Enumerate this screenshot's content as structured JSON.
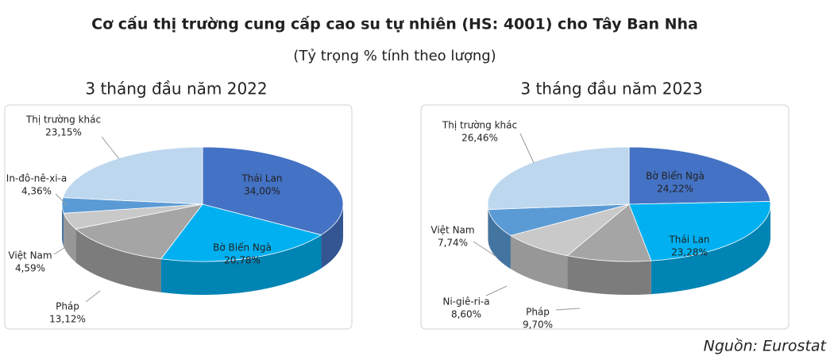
{
  "title": "Cơ cấu thị trường cung cấp cao su tự nhiên (HS: 4001) cho Tây Ban Nha",
  "subtitle": "(Tỷ trọng % tính theo lượng)",
  "source": "Nguồn: Eurostat",
  "chart_data": [
    {
      "type": "pie",
      "title": "3 tháng đầu năm 2022",
      "categories": [
        "Thái Lan",
        "Bờ Biển Ngà",
        "Pháp",
        "Việt Nam",
        "In-đô-nê-xi-a",
        "Thị trường khác"
      ],
      "values": [
        34.0,
        20.78,
        13.12,
        4.59,
        4.36,
        23.15
      ],
      "value_labels": [
        "34,00%",
        "20,78%",
        "13,12%",
        "4,59%",
        "4,36%",
        "23,15%"
      ],
      "colors": [
        "#4472c4",
        "#00b0f0",
        "#a5a5a5",
        "#c9c9c9",
        "#5b9bd5",
        "#bdd7ee"
      ]
    },
    {
      "type": "pie",
      "title": "3 tháng đầu năm 2023",
      "categories": [
        "Bờ Biển Ngà",
        "Thái Lan",
        "Pháp",
        "Ni-giê-ri-a",
        "Việt Nam",
        "Thị trường khác"
      ],
      "values": [
        24.22,
        23.28,
        9.7,
        8.6,
        7.74,
        26.46
      ],
      "value_labels": [
        "24,22%",
        "23,28%",
        "9,70%",
        "8,60%",
        "7,74%",
        "26,46%"
      ],
      "colors": [
        "#4472c4",
        "#00b0f0",
        "#a5a5a5",
        "#c9c9c9",
        "#5b9bd5",
        "#bdd7ee"
      ]
    }
  ]
}
